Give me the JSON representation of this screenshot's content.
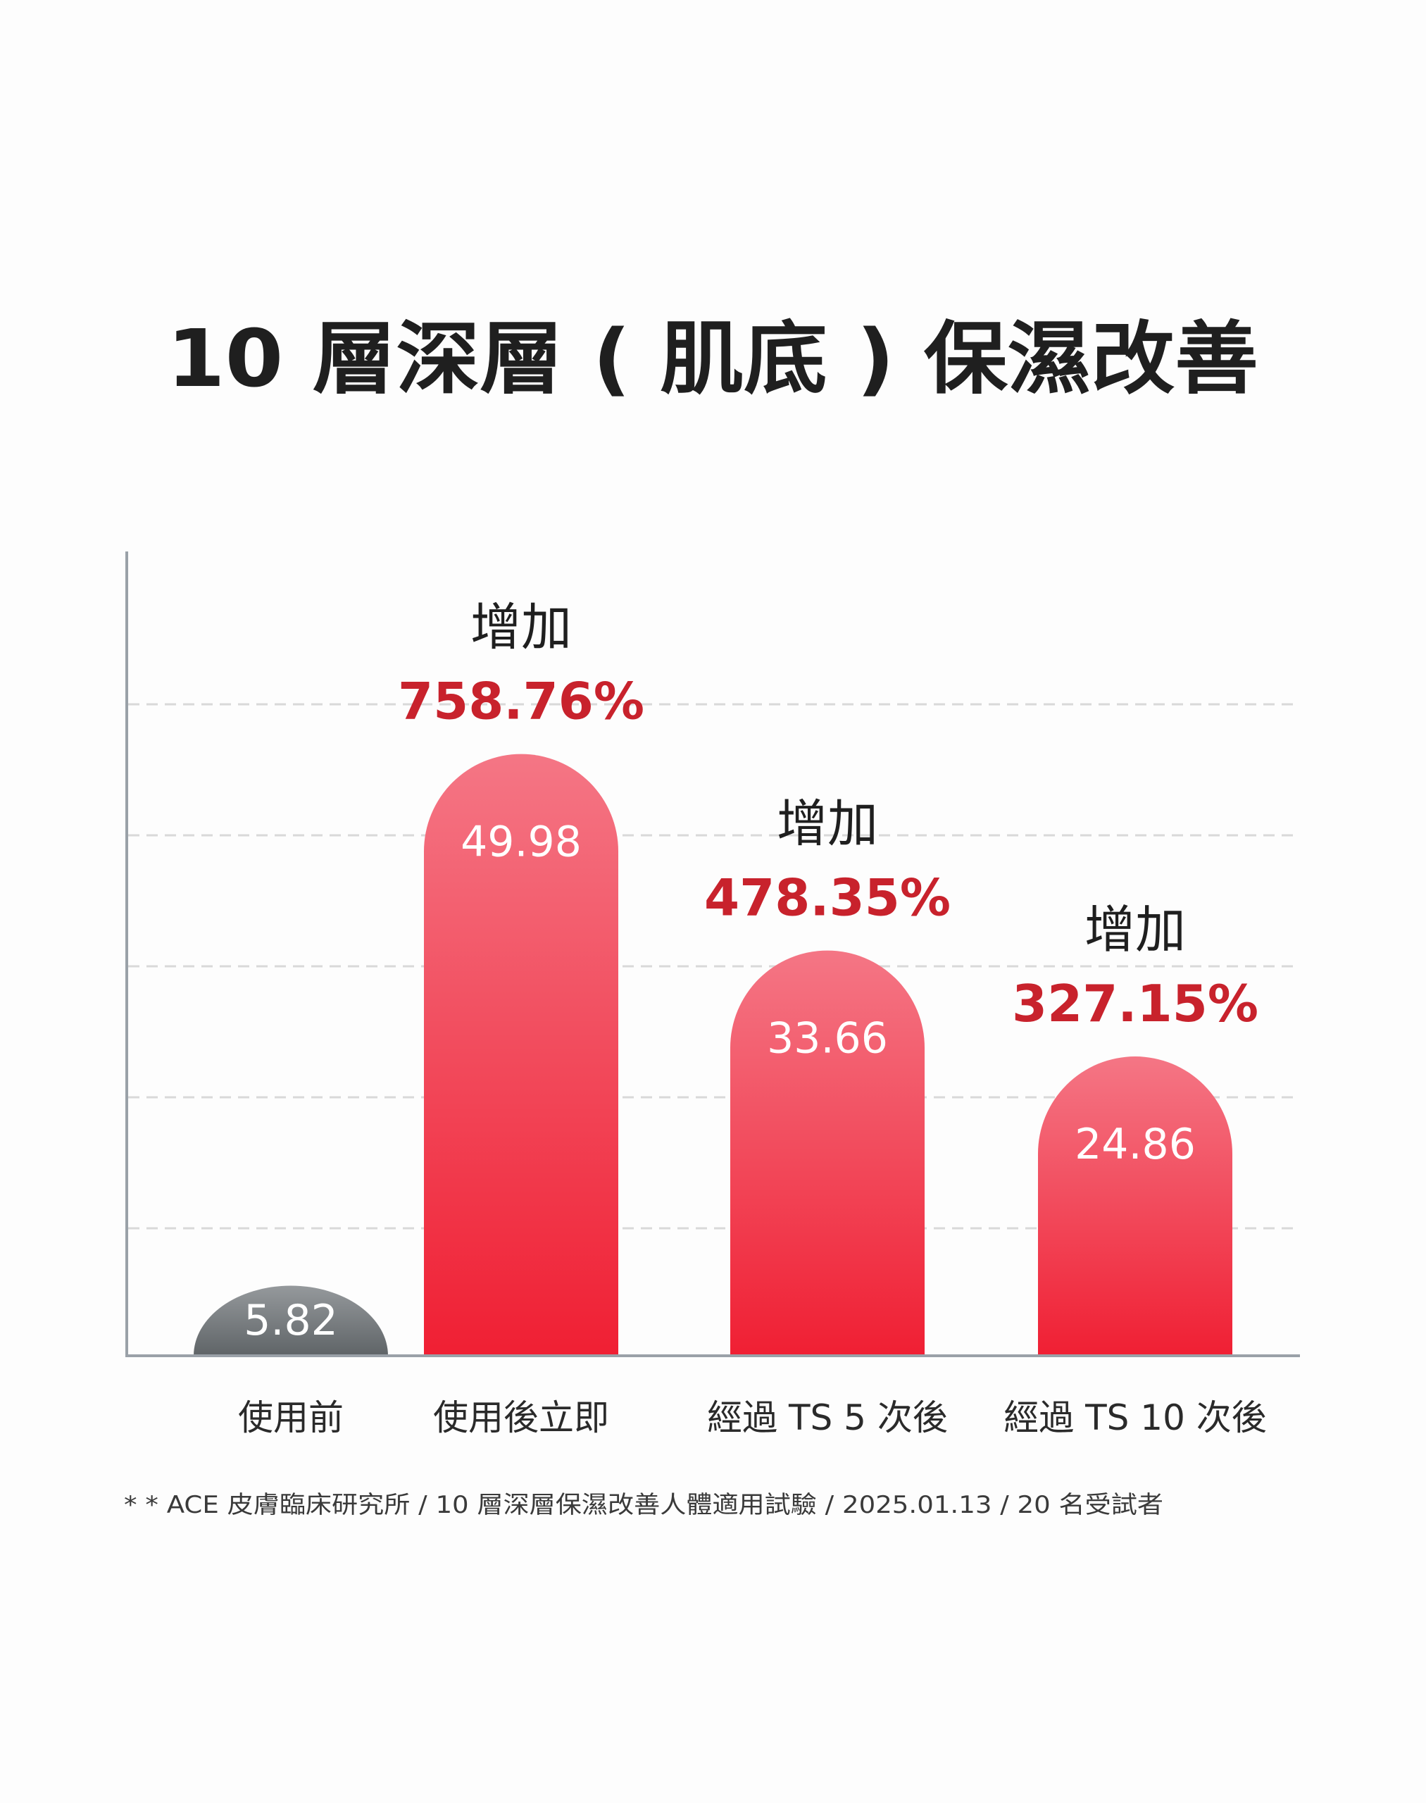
{
  "chart_data": {
    "type": "bar",
    "title": "10 層深層 ( 肌底 ) 保濕改善",
    "categories": [
      "使用前",
      "使用後立即",
      "經過 TS 5 次後",
      "經過 TS 10 次後"
    ],
    "values": [
      5.82,
      49.98,
      33.66,
      24.86
    ],
    "value_labels": [
      "5.82",
      "49.98",
      "33.66",
      "24.86"
    ],
    "increase_prefix": "增加",
    "increase_labels": [
      null,
      "758.76%",
      "478.35%",
      "327.15%"
    ],
    "ylim": [
      0,
      58.5
    ],
    "grid": "dashed horizontal",
    "xlabel": "",
    "ylabel": ""
  },
  "footnote": "* * ACE 皮膚臨床研究所 / 10 層深層保濕改善人體適用試驗 / 2025.01.13 / 20 名受試者",
  "colors": {
    "title": "#1f1f1f",
    "accent_red": "#c8222c",
    "bar_red_top": "#f47685",
    "bar_red_bottom": "#f01f33",
    "bar_gray_top": "#95999c",
    "bar_gray_bottom": "#5f6467",
    "axis": "#9aa1a8",
    "grid": "#d9d9d9"
  }
}
